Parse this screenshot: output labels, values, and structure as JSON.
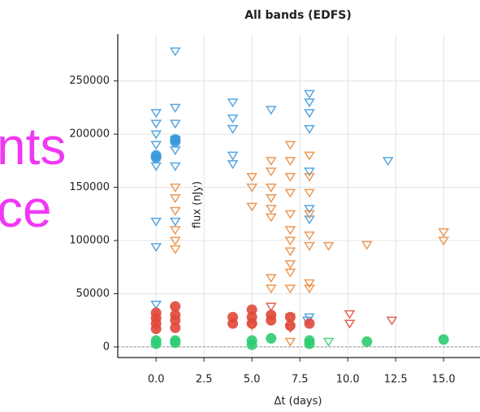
{
  "chart_data": {
    "type": "scatter",
    "title": "All bands (EDFS)",
    "xlabel": "Δt (days)",
    "ylabel": "flux (nJy)",
    "xlim": [
      -2,
      16.9
    ],
    "ylim": [
      -10000,
      294000
    ],
    "xticks": [
      {
        "value": 0,
        "label": "0.0"
      },
      {
        "value": 2.5,
        "label": "2.5"
      },
      {
        "value": 5,
        "label": "5.0"
      },
      {
        "value": 7.5,
        "label": "7.5"
      },
      {
        "value": 10,
        "label": "10.0"
      },
      {
        "value": 12.5,
        "label": "12.5"
      },
      {
        "value": 15,
        "label": "15.0"
      }
    ],
    "yticks": [
      0,
      50000,
      100000,
      150000,
      200000,
      250000
    ],
    "grid": true,
    "series": [
      {
        "color": "#3a98dc",
        "marker": "triangle-down",
        "x": [
          0,
          0,
          0,
          0,
          0,
          0,
          0,
          0,
          1,
          1,
          1,
          1,
          1,
          1,
          1,
          4,
          4,
          4,
          4,
          4,
          6,
          8,
          8,
          8,
          8,
          8,
          8,
          8,
          8,
          12.1,
          7.9
        ],
        "y": [
          220000,
          210000,
          200000,
          190000,
          170000,
          118000,
          94000,
          40000,
          278000,
          225000,
          210000,
          195000,
          185000,
          170000,
          118000,
          230000,
          215000,
          205000,
          180000,
          172000,
          223000,
          238000,
          230000,
          220000,
          205000,
          165000,
          130000,
          120000,
          28000,
          175000,
          25000
        ]
      },
      {
        "color": "#3a98dc",
        "marker": "circle",
        "x": [
          0,
          0,
          1,
          1
        ],
        "y": [
          180000,
          178000,
          195000,
          193000
        ]
      },
      {
        "color": "#e8873a",
        "marker": "triangle-down",
        "x": [
          1,
          1,
          1,
          1,
          1,
          1,
          5,
          5,
          5,
          6,
          6,
          6,
          6,
          6,
          6,
          6,
          6,
          7,
          7,
          7,
          7,
          7,
          7,
          7,
          7,
          7,
          7,
          7,
          7,
          7,
          8,
          8,
          8,
          8,
          8,
          8,
          8,
          8,
          9,
          11,
          15,
          15,
          5
        ],
        "y": [
          150000,
          140000,
          128000,
          110000,
          100000,
          92000,
          160000,
          150000,
          132000,
          175000,
          165000,
          150000,
          140000,
          130000,
          122000,
          65000,
          55000,
          190000,
          175000,
          160000,
          145000,
          125000,
          110000,
          100000,
          90000,
          78000,
          70000,
          55000,
          28000,
          5000,
          180000,
          160000,
          145000,
          125000,
          105000,
          95000,
          60000,
          55000,
          95000,
          96000,
          108000,
          100000,
          20000
        ]
      },
      {
        "color": "#e0483a",
        "marker": "triangle-down",
        "x": [
          10.1,
          10.1,
          12.3,
          6,
          7
        ],
        "y": [
          31000,
          22000,
          25000,
          38000,
          18000
        ]
      },
      {
        "color": "#e0483a",
        "marker": "circle",
        "x": [
          0,
          0,
          0,
          0,
          1,
          1,
          1,
          1,
          4,
          4,
          5,
          5,
          5,
          6,
          6,
          7,
          7,
          8
        ],
        "y": [
          32000,
          27000,
          22000,
          17000,
          38000,
          30000,
          25000,
          18000,
          28000,
          22000,
          35000,
          28000,
          22000,
          30000,
          25000,
          28000,
          20000,
          22000
        ]
      },
      {
        "color": "#2ecc71",
        "marker": "circle",
        "x": [
          0,
          0,
          1,
          1,
          5,
          5,
          6,
          8,
          8,
          11,
          15
        ],
        "y": [
          3000,
          6000,
          4000,
          6000,
          2000,
          6000,
          8000,
          3000,
          6000,
          5000,
          7000
        ]
      },
      {
        "color": "#2ecc71",
        "marker": "triangle-down",
        "x": [
          9
        ],
        "y": [
          5000
        ]
      }
    ]
  },
  "overlay_texts": [
    "nts",
    "ce"
  ]
}
